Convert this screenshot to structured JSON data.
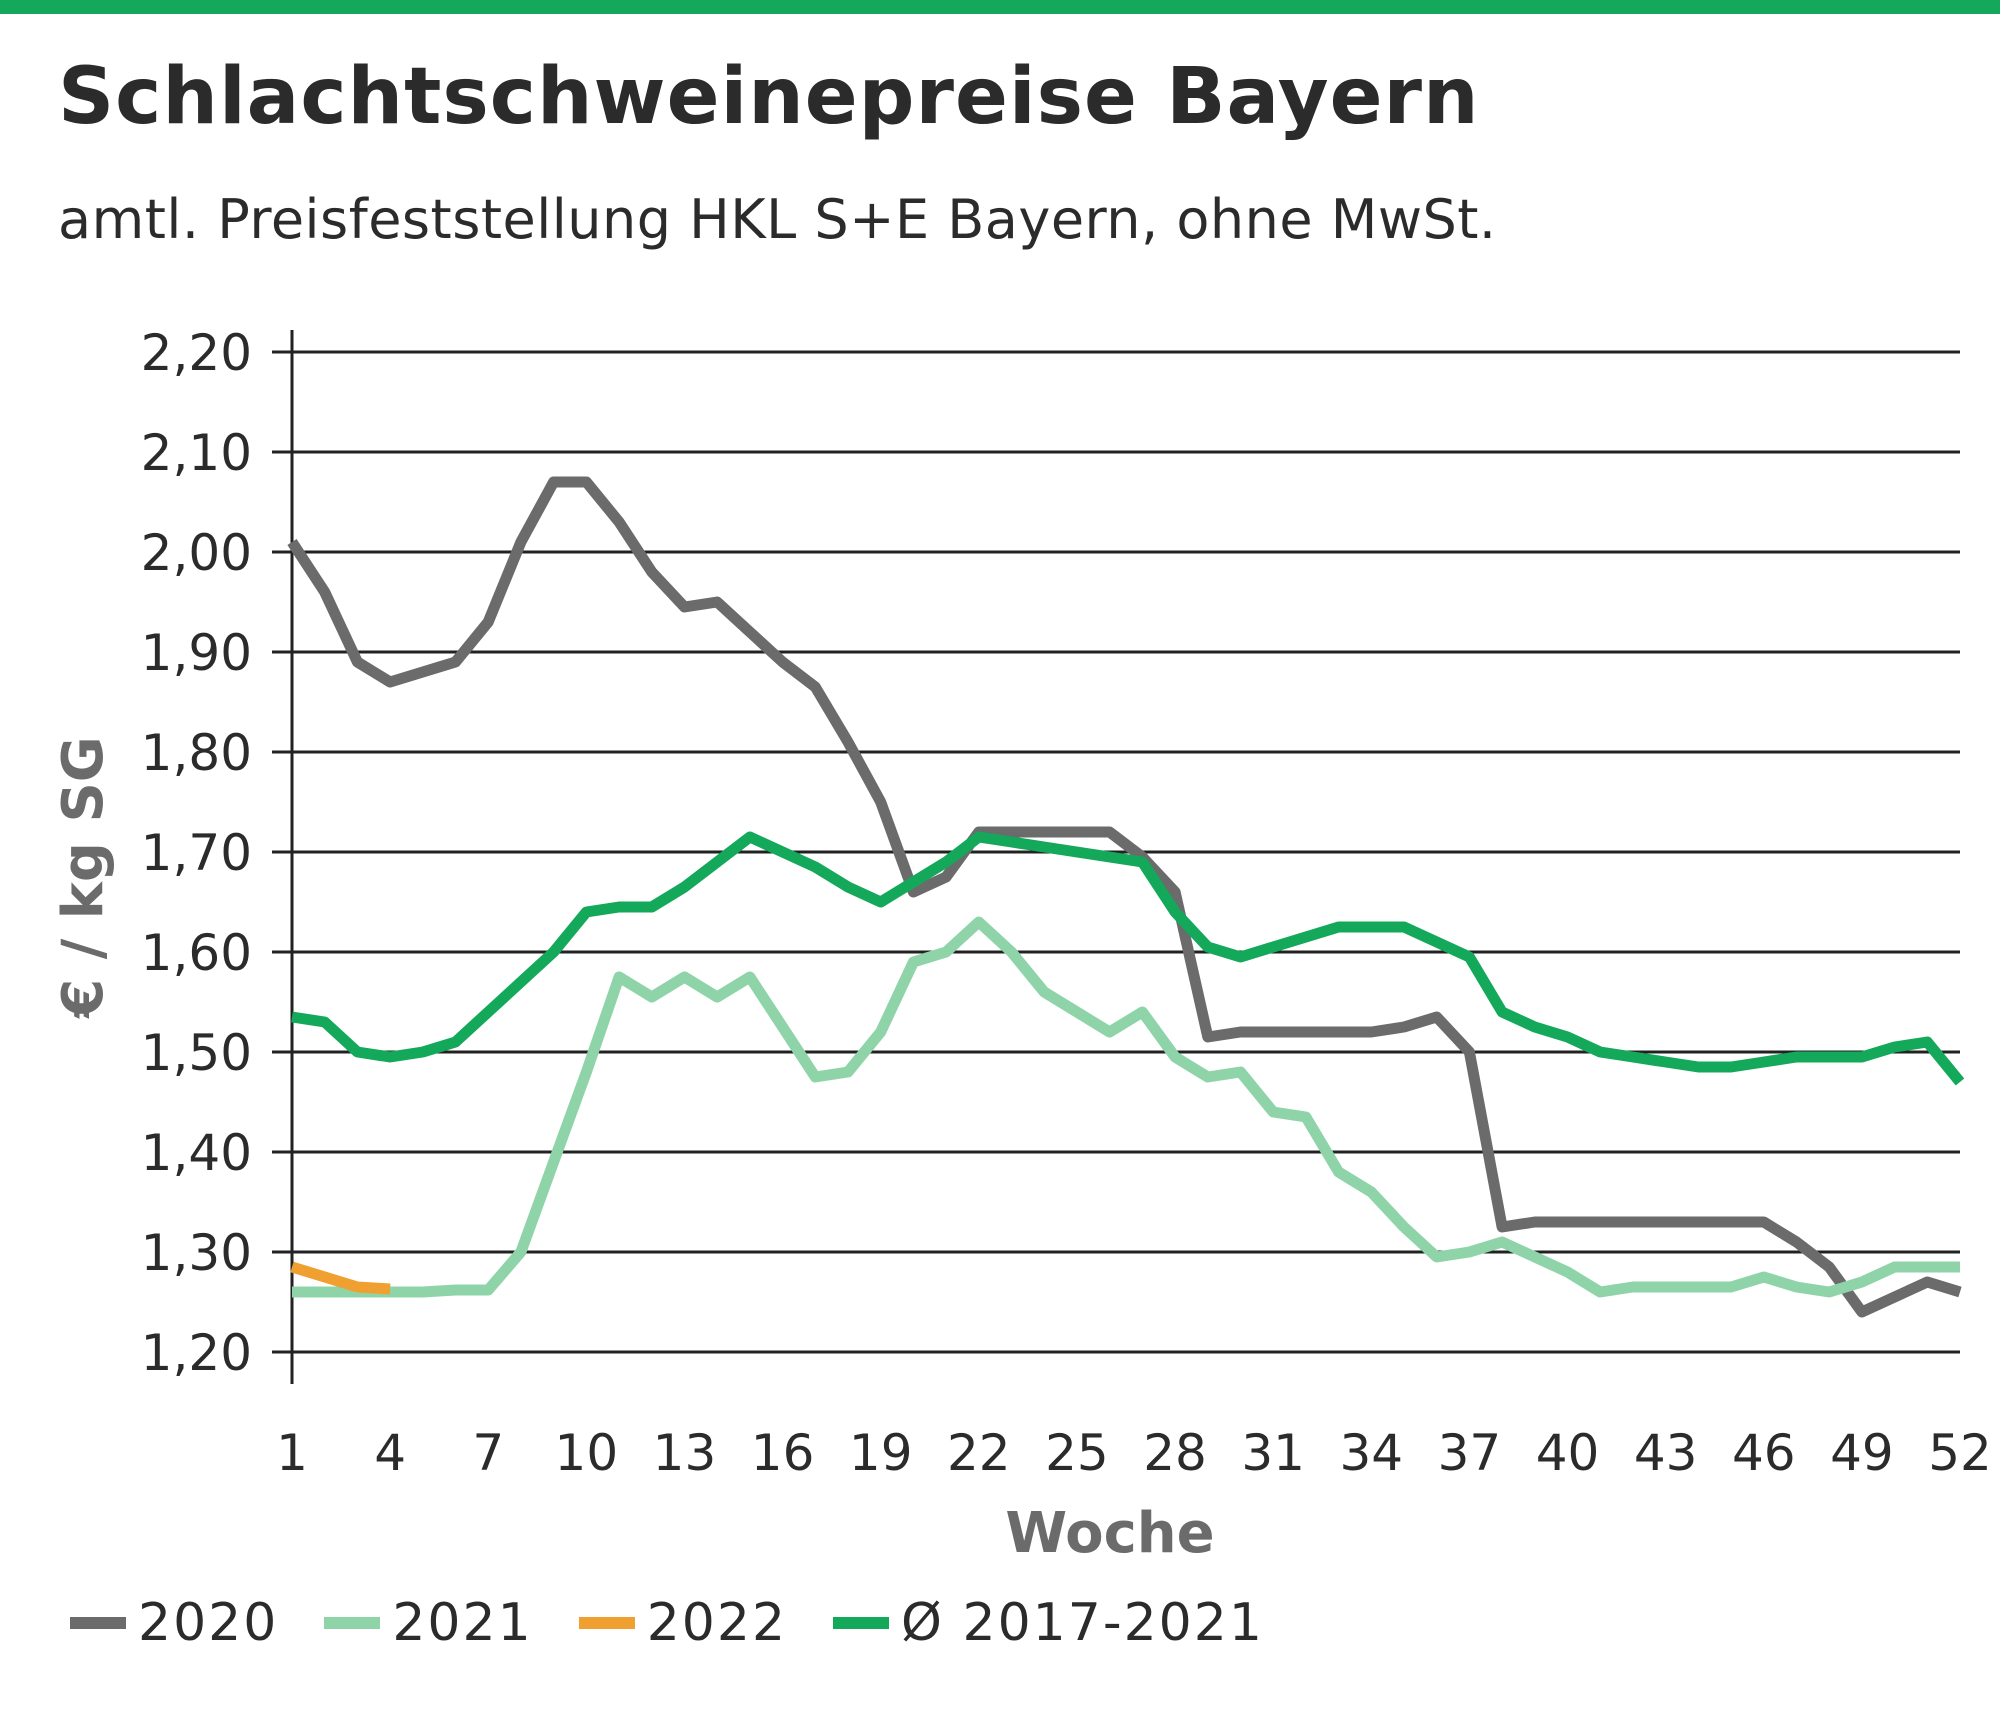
{
  "title": "Schlachtschweinepreise Bayern",
  "subtitle": "amtl. Preisfeststellung HKL S+E Bayern, ohne MwSt.",
  "colors": {
    "accent_bar": "#14a85a",
    "series_2020": "#6b6b6b",
    "series_2021": "#8fd4a8",
    "series_2022": "#f0a030",
    "series_avg": "#14a85a"
  },
  "chart_data": {
    "type": "line",
    "xlabel": "Woche",
    "ylabel": "€ / kg SG",
    "xlim": [
      1,
      52
    ],
    "ylim": [
      1.2,
      2.2
    ],
    "x_ticks": [
      1,
      4,
      7,
      10,
      13,
      16,
      19,
      22,
      25,
      28,
      31,
      34,
      37,
      40,
      43,
      46,
      49,
      52
    ],
    "y_ticks": [
      "1,20",
      "1,30",
      "1,40",
      "1,50",
      "1,60",
      "1,70",
      "1,80",
      "1,90",
      "2,00",
      "2,10",
      "2,20"
    ],
    "y_tick_values": [
      1.2,
      1.3,
      1.4,
      1.5,
      1.6,
      1.7,
      1.8,
      1.9,
      2.0,
      2.1,
      2.2
    ],
    "grid": true,
    "legend_position": "bottom",
    "series": [
      {
        "name": "2020",
        "color": "#6b6b6b",
        "x": [
          1,
          2,
          3,
          4,
          5,
          6,
          7,
          8,
          9,
          10,
          11,
          12,
          13,
          14,
          15,
          16,
          17,
          18,
          19,
          20,
          21,
          22,
          23,
          24,
          25,
          26,
          27,
          28,
          29,
          30,
          31,
          32,
          33,
          34,
          35,
          36,
          37,
          38,
          39,
          40,
          41,
          42,
          43,
          44,
          45,
          46,
          47,
          48,
          49,
          50,
          51,
          52
        ],
        "values": [
          2.01,
          1.96,
          1.89,
          1.87,
          1.88,
          1.89,
          1.93,
          2.01,
          2.07,
          2.07,
          2.03,
          1.98,
          1.945,
          1.95,
          1.92,
          1.89,
          1.865,
          1.81,
          1.75,
          1.66,
          1.675,
          1.72,
          1.72,
          1.72,
          1.72,
          1.72,
          1.695,
          1.66,
          1.515,
          1.52,
          1.52,
          1.52,
          1.52,
          1.52,
          1.525,
          1.535,
          1.5,
          1.325,
          1.33,
          1.33,
          1.33,
          1.33,
          1.33,
          1.33,
          1.33,
          1.33,
          1.31,
          1.285,
          1.24,
          1.255,
          1.27,
          1.26
        ]
      },
      {
        "name": "2021",
        "color": "#8fd4a8",
        "x": [
          1,
          2,
          3,
          4,
          5,
          6,
          7,
          8,
          9,
          10,
          11,
          12,
          13,
          14,
          15,
          16,
          17,
          18,
          19,
          20,
          21,
          22,
          23,
          24,
          25,
          26,
          27,
          28,
          29,
          30,
          31,
          32,
          33,
          34,
          35,
          36,
          37,
          38,
          39,
          40,
          41,
          42,
          43,
          44,
          45,
          46,
          47,
          48,
          49,
          50,
          51,
          52
        ],
        "values": [
          1.26,
          1.26,
          1.26,
          1.26,
          1.26,
          1.262,
          1.262,
          1.3,
          1.39,
          1.48,
          1.575,
          1.555,
          1.575,
          1.555,
          1.575,
          1.525,
          1.475,
          1.48,
          1.52,
          1.59,
          1.6,
          1.63,
          1.6,
          1.56,
          1.54,
          1.52,
          1.54,
          1.495,
          1.475,
          1.48,
          1.44,
          1.435,
          1.38,
          1.36,
          1.325,
          1.295,
          1.3,
          1.31,
          1.295,
          1.28,
          1.26,
          1.265,
          1.265,
          1.265,
          1.265,
          1.275,
          1.265,
          1.26,
          1.27,
          1.285,
          1.285,
          1.285
        ]
      },
      {
        "name": "2022",
        "color": "#f0a030",
        "x": [
          1,
          2,
          3,
          4
        ],
        "values": [
          1.285,
          1.275,
          1.265,
          1.263
        ]
      },
      {
        "name": "Ø 2017-2021",
        "color": "#14a85a",
        "x": [
          1,
          2,
          3,
          4,
          5,
          6,
          7,
          8,
          9,
          10,
          11,
          12,
          13,
          14,
          15,
          16,
          17,
          18,
          19,
          20,
          21,
          22,
          23,
          24,
          25,
          26,
          27,
          28,
          29,
          30,
          31,
          32,
          33,
          34,
          35,
          36,
          37,
          38,
          39,
          40,
          41,
          42,
          43,
          44,
          45,
          46,
          47,
          48,
          49,
          50,
          51,
          52
        ],
        "values": [
          1.535,
          1.53,
          1.5,
          1.495,
          1.5,
          1.51,
          1.54,
          1.57,
          1.6,
          1.64,
          1.645,
          1.645,
          1.665,
          1.69,
          1.715,
          1.7,
          1.685,
          1.665,
          1.65,
          1.67,
          1.69,
          1.715,
          1.71,
          1.705,
          1.7,
          1.695,
          1.69,
          1.64,
          1.605,
          1.595,
          1.605,
          1.615,
          1.625,
          1.625,
          1.625,
          1.61,
          1.595,
          1.54,
          1.525,
          1.515,
          1.5,
          1.495,
          1.49,
          1.485,
          1.485,
          1.49,
          1.495,
          1.495,
          1.495,
          1.505,
          1.51,
          1.47
        ]
      }
    ]
  }
}
